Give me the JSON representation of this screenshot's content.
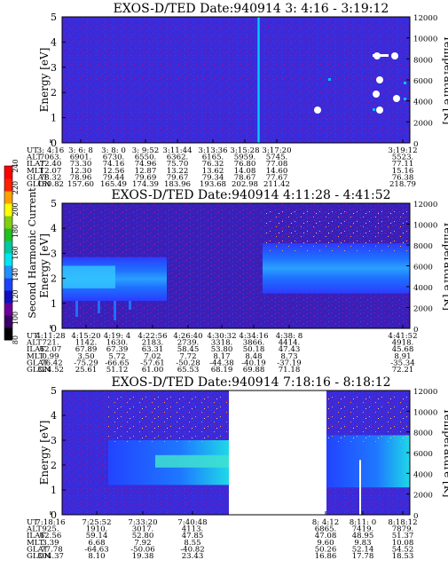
{
  "chart_data": [
    {
      "type": "heatmap",
      "title": "EXOS-D/TED   Date:940914  3: 4:16 - 3:19:12",
      "ylabel": "Energy [eV]",
      "ylabel_right": "Temperature [K]",
      "ylim": [
        0,
        5
      ],
      "ylim_right": [
        0,
        12000
      ],
      "yticks": [
        "0",
        "1",
        "2",
        "3",
        "4",
        "5"
      ],
      "yticks_right": [
        "0",
        "2000",
        "4000",
        "6000",
        "8000",
        "10000",
        "12000"
      ],
      "table": {
        "row_labels": [
          "UT",
          "ALT",
          "ILAT",
          "MLT",
          "GLAT",
          "GLON"
        ],
        "columns": [
          [
            "3: 4:16",
            "7063.",
            "72.40",
            "12.07",
            "78.32",
            "150.82"
          ],
          [
            "3: 6: 8",
            "6901.",
            "73.30",
            "12.30",
            "78.96",
            "157.60"
          ],
          [
            "3: 8: 0",
            "6730.",
            "74.16",
            "12.56",
            "79.44",
            "165.49"
          ],
          [
            "3: 9:52",
            "6550.",
            "74.96",
            "12.87",
            "79.69",
            "174.39"
          ],
          [
            "3:11:44",
            "6362.",
            "75.70",
            "13.22",
            "79.67",
            "183.96"
          ],
          [
            "3:13:36",
            "6165.",
            "76.32",
            "13.62",
            "79.34",
            "193.68"
          ],
          [
            "3:15:28",
            "5959.",
            "76.80",
            "14.08",
            "78.67",
            "202.98"
          ],
          [
            "3:17:20",
            "5745.",
            "77.08",
            "14.60",
            "77.67",
            "211.42"
          ],
          [
            "3:19:12",
            "5523.",
            "77.11",
            "15.16",
            "76.38",
            "218.79"
          ]
        ]
      }
    },
    {
      "type": "heatmap",
      "title": "EXOS-D/TED   Date:940914  4:11:28 - 4:41:52",
      "ylabel": "Energy [eV]",
      "ylabel_right": "Temperature [K]",
      "ylim": [
        0,
        5
      ],
      "ylim_right": [
        0,
        12000
      ],
      "yticks": [
        "0",
        "1",
        "2",
        "3",
        "4",
        "5"
      ],
      "yticks_right": [
        "0",
        "2000",
        "4000",
        "6000",
        "8000",
        "10000",
        "12000"
      ],
      "colorbar": {
        "label": "Second Harmonic Current",
        "ticks": [
          "80",
          "100",
          "120",
          "140",
          "160",
          "180",
          "200",
          "220",
          "240"
        ],
        "colors": [
          "#000000",
          "#3a0066",
          "#6a0099",
          "#1010c0",
          "#1c44ff",
          "#1e90ff",
          "#00e5ee",
          "#00c8a0",
          "#20c020",
          "#80d010",
          "#ffff00",
          "#ffa000",
          "#ff2000",
          "#ff0000"
        ]
      },
      "table": {
        "row_labels": [
          "UT",
          "ALT",
          "ILAT",
          "MLT",
          "GLAT",
          "GLON"
        ],
        "columns": [
          [
            "4:11:28",
            "721.",
            "62.07",
            "0.99",
            "-76.42",
            "324.52"
          ],
          [
            "4:15:20",
            "1142.",
            "67.89",
            "3.50",
            "-75.29",
            "25.61"
          ],
          [
            "4:19: 4",
            "1630.",
            "67.39",
            "5.72",
            "-66.65",
            "51.12"
          ],
          [
            "4:22:56",
            "2183.",
            "63.31",
            "7.02",
            "-57.61",
            "61.00"
          ],
          [
            "4:26:40",
            "2739.",
            "58.45",
            "7.72",
            "-50.28",
            "65.53"
          ],
          [
            "4:30:32",
            "3318.",
            "53.80",
            "8.17",
            "-44.38",
            "68.19"
          ],
          [
            "4:34:16",
            "3866.",
            "50.18",
            "8.48",
            "-40.19",
            "69.88"
          ],
          [
            "4:38: 8",
            "4414.",
            "47.43",
            "8.73",
            "-37.19",
            "71.18"
          ],
          [
            "4:41:52",
            "4918.",
            "45.68",
            "8.91",
            "-35.34",
            "72.21"
          ]
        ]
      }
    },
    {
      "type": "heatmap",
      "title": "EXOS-D/TED   Date:940914  7:18:16 - 8:18:12",
      "ylabel": "Energy [eV]",
      "ylabel_right": "Temperature [K]",
      "ylim": [
        0,
        5
      ],
      "ylim_right": [
        0,
        12000
      ],
      "yticks": [
        "0",
        "1",
        "2",
        "3",
        "4",
        "5"
      ],
      "yticks_right": [
        "0",
        "2000",
        "4000",
        "6000",
        "8000",
        "10000",
        "12000"
      ],
      "table": {
        "row_labels": [
          "UT",
          "ALT",
          "ILAT",
          "MLT",
          "GLAT",
          "GLON"
        ],
        "columns": [
          [
            "7:18:16",
            "925.",
            "62.56",
            "3.39",
            "-77.78",
            "304.37"
          ],
          [
            "7:25:52",
            "1910.",
            "59.14",
            "6.68",
            "-64.63",
            "8.10"
          ],
          [
            "7:33:20",
            "3017.",
            "52.80",
            "7.92",
            "-50.06",
            "19.38"
          ],
          [
            "7:40:48",
            "4113.",
            "47.85",
            "8.55",
            "-40.82",
            "23.43"
          ],
          [
            "8: 4:12",
            "6865.",
            "47.08",
            "9.60",
            "50.26",
            "16.86"
          ],
          [
            "8:11: 0",
            "7419.",
            "48.95",
            "9.83",
            "52.14",
            "17.78"
          ],
          [
            "8:18:12",
            "7879.",
            "51.37",
            "10.08",
            "54.52",
            "18.53"
          ]
        ]
      }
    }
  ]
}
